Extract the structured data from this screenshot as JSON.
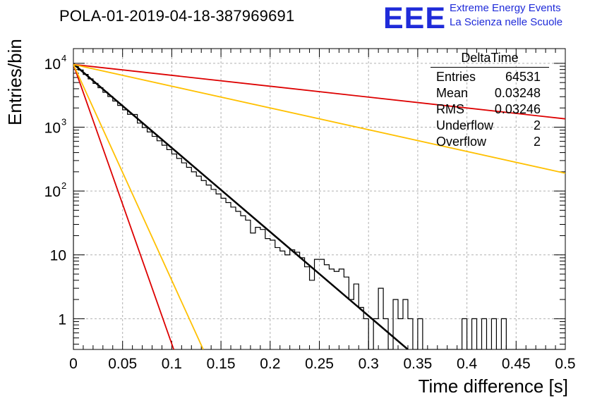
{
  "title": "POLA-01-2019-04-18-387969691",
  "logo": {
    "mark": "EEE",
    "line1": "Extreme Energy Events",
    "line2": "La Scienza nelle Scuole",
    "color": "#1f2bd9"
  },
  "stats_box": {
    "name": "DeltaTime",
    "rows": [
      {
        "label": "Entries",
        "value": "64531"
      },
      {
        "label": "Mean",
        "value": "0.03248"
      },
      {
        "label": "RMS",
        "value": "0.03246"
      },
      {
        "label": "Underflow",
        "value": "2"
      },
      {
        "label": "Overflow",
        "value": "2"
      }
    ]
  },
  "chart_data": {
    "type": "line",
    "xlabel": "Time difference [s]",
    "ylabel": "Entries/bin",
    "xlim": [
      0,
      0.5
    ],
    "ylim": [
      0.33,
      17000
    ],
    "y_scale": "log",
    "grid": true,
    "x_ticks": [
      "0",
      "0.05",
      "0.1",
      "0.15",
      "0.2",
      "0.25",
      "0.3",
      "0.35",
      "0.4",
      "0.45",
      "0.5"
    ],
    "y_ticks": [
      {
        "value": 1,
        "label": "1"
      },
      {
        "value": 10,
        "label": "10"
      },
      {
        "value": 100,
        "label": "10",
        "exp": "2"
      },
      {
        "value": 1000,
        "label": "10",
        "exp": "3"
      },
      {
        "value": 10000,
        "label": "10",
        "exp": "4"
      }
    ],
    "histogram": {
      "bin_width": 0.005,
      "values": [
        9200,
        7850,
        6700,
        5700,
        4850,
        4150,
        3520,
        3020,
        2570,
        2190,
        1870,
        1590,
        1580,
        1160,
        988,
        842,
        718,
        612,
        522,
        445,
        380,
        324,
        276,
        235,
        200,
        171,
        146,
        124,
        106,
        90,
        77,
        66,
        56,
        48,
        41,
        35,
        22,
        27,
        25,
        18,
        17,
        13,
        11.5,
        10,
        12,
        11,
        9,
        6.5,
        4,
        8.5,
        8.5,
        7,
        6,
        5.5,
        6,
        4.5,
        2,
        3.5,
        1.5,
        1,
        0,
        1,
        3,
        1,
        0,
        2,
        1,
        2,
        1,
        0,
        1,
        0,
        0,
        0,
        0,
        0,
        0,
        0,
        0,
        1,
        0,
        1,
        0,
        1,
        0,
        1,
        0,
        1,
        0,
        0,
        0,
        0,
        0,
        0,
        0,
        0,
        0,
        0,
        0,
        0
      ],
      "color": "#000000"
    },
    "series": [
      {
        "x": [
          0,
          0.34
        ],
        "y": [
          9800,
          0.33
        ],
        "color": "#000000"
      },
      {
        "x": [
          0,
          0.5
        ],
        "y": [
          9600,
          1350
        ],
        "color": "#dd0000"
      },
      {
        "x": [
          0,
          0.5
        ],
        "y": [
          9600,
          190
        ],
        "color": "#ffc000"
      },
      {
        "x": [
          0,
          0.102
        ],
        "y": [
          9600,
          0.33
        ],
        "color": "#dd0000"
      },
      {
        "x": [
          0,
          0.132
        ],
        "y": [
          9600,
          0.33
        ],
        "color": "#ffc000"
      }
    ]
  }
}
